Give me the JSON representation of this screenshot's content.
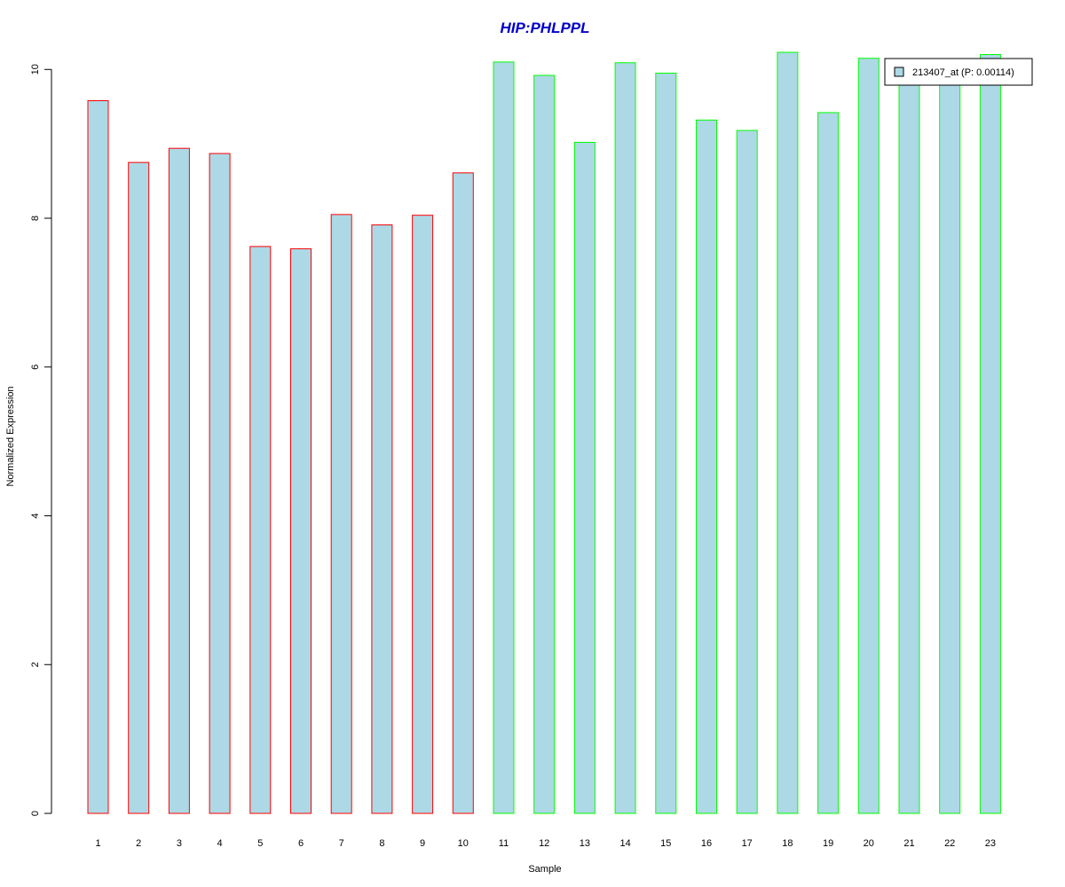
{
  "chart_data": {
    "type": "bar",
    "title": "HIP:PHLPPL",
    "xlabel": "Sample",
    "ylabel": "Normalized Expression",
    "categories": [
      "1",
      "2",
      "3",
      "4",
      "5",
      "6",
      "7",
      "8",
      "9",
      "10",
      "11",
      "12",
      "13",
      "14",
      "15",
      "16",
      "17",
      "18",
      "19",
      "20",
      "21",
      "22",
      "23"
    ],
    "series": [
      {
        "name": "213407_at (P: 0.00114)",
        "values": [
          9.58,
          8.75,
          8.94,
          8.87,
          7.62,
          7.59,
          8.05,
          7.91,
          8.04,
          8.61,
          10.1,
          9.92,
          9.02,
          10.09,
          9.95,
          9.32,
          9.18,
          10.23,
          9.42,
          10.15,
          9.95,
          10.05,
          10.2
        ],
        "fill": "#ADD8E6",
        "border_colors": [
          "#FF0000",
          "#FF0000",
          "#FF0000",
          "#FF0000",
          "#FF0000",
          "#FF0000",
          "#FF0000",
          "#FF0000",
          "#FF0000",
          "#FF0000",
          "#00FF00",
          "#00FF00",
          "#00FF00",
          "#00FF00",
          "#00FF00",
          "#00FF00",
          "#00FF00",
          "#00FF00",
          "#00FF00",
          "#00FF00",
          "#00FF00",
          "#00FF00",
          "#00FF00"
        ]
      }
    ],
    "ylim": [
      0,
      10.23
    ],
    "yticks": [
      0,
      2,
      4,
      6,
      8,
      10
    ],
    "grid": false,
    "legend_position": "top-right",
    "title_color": "#0000CC"
  }
}
